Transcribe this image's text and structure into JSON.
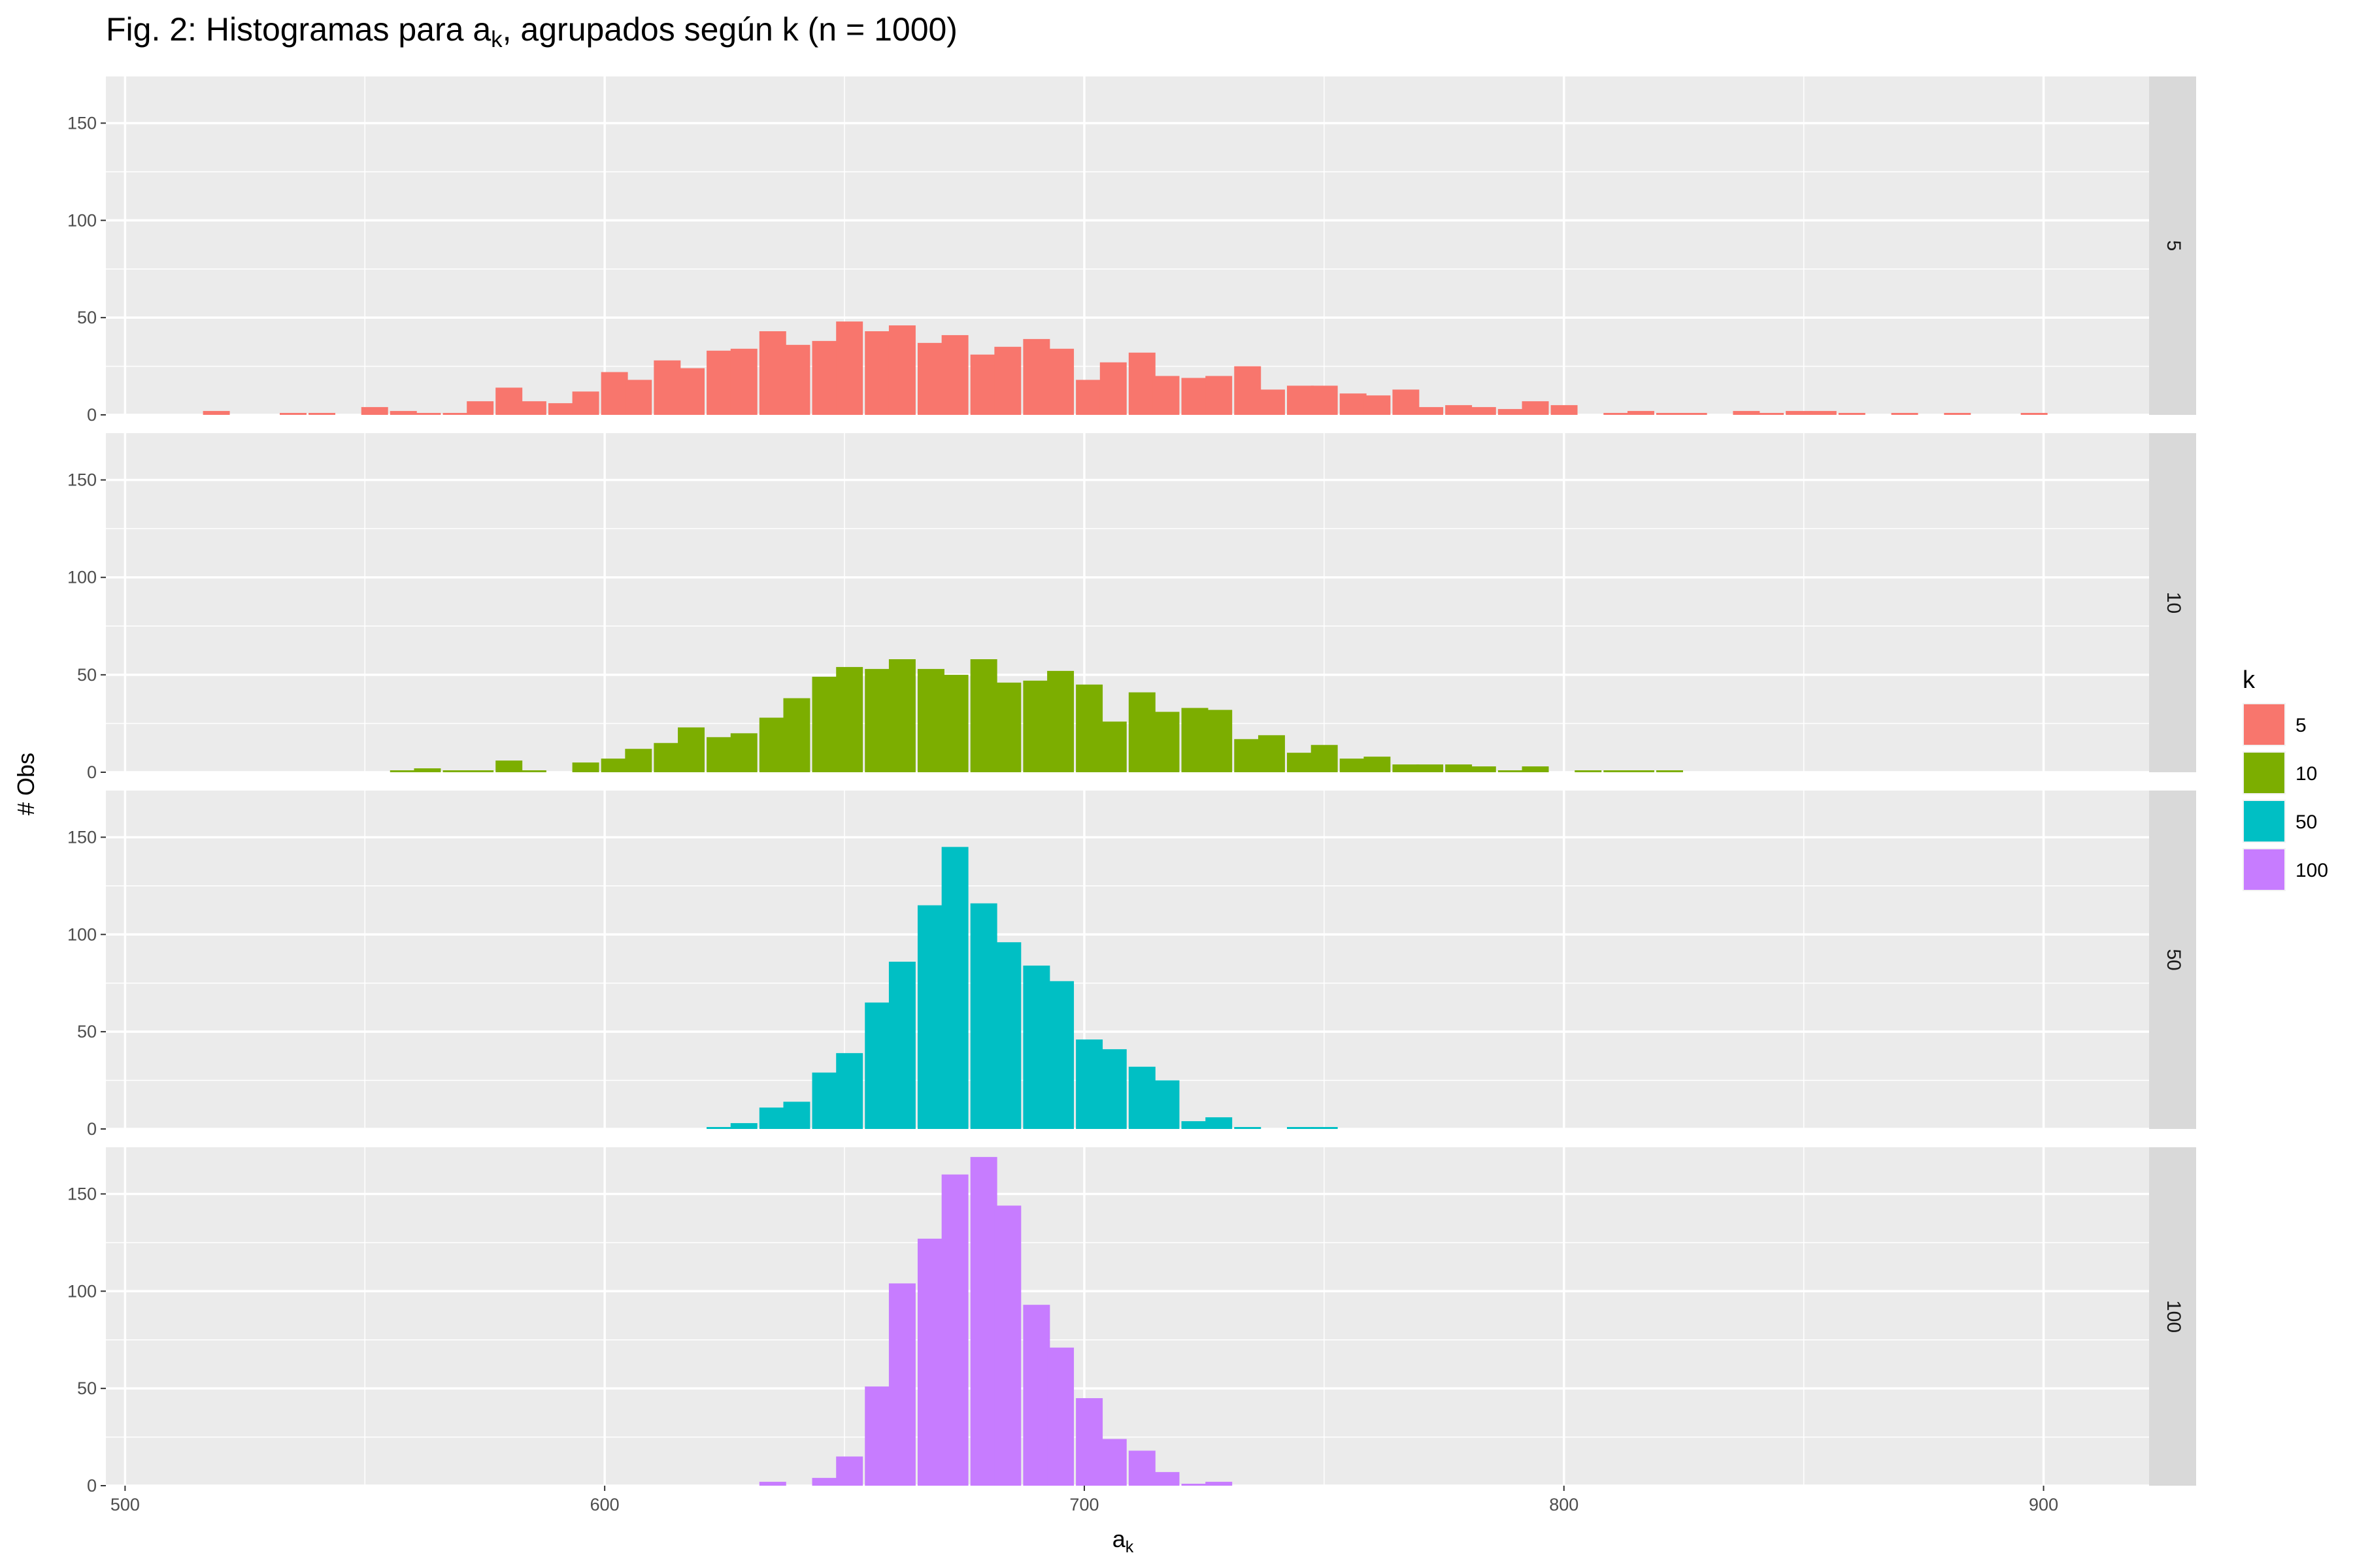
{
  "chart_data": {
    "type": "bar",
    "title_main": "Fig. 2: Histogramas para a",
    "title_sub": "k",
    "title_rest": ", agrupados según k (n = 1000)",
    "xlabel_main": "a",
    "xlabel_sub": "k",
    "ylabel": "# Obs",
    "xlim": [
      496,
      922
    ],
    "ylim": [
      0,
      174
    ],
    "x_ticks": [
      500,
      600,
      700,
      800,
      900
    ],
    "y_ticks": [
      0,
      50,
      100,
      150
    ],
    "grid": true,
    "legend": {
      "title": "k",
      "position": "right"
    },
    "facets": [
      {
        "name": "5",
        "color": "#F8766D",
        "bin_width": 5.5,
        "bins": [
          [
            519,
            2
          ],
          [
            535,
            1
          ],
          [
            541,
            1
          ],
          [
            552,
            4
          ],
          [
            558,
            2
          ],
          [
            563,
            1
          ],
          [
            569,
            1
          ],
          [
            574,
            7
          ],
          [
            580,
            14
          ],
          [
            585,
            7
          ],
          [
            591,
            6
          ],
          [
            596,
            12
          ],
          [
            602,
            22
          ],
          [
            607,
            18
          ],
          [
            613,
            28
          ],
          [
            618,
            24
          ],
          [
            624,
            33
          ],
          [
            629,
            34
          ],
          [
            635,
            43
          ],
          [
            640,
            36
          ],
          [
            646,
            38
          ],
          [
            651,
            48
          ],
          [
            657,
            43
          ],
          [
            662,
            46
          ],
          [
            668,
            37
          ],
          [
            673,
            41
          ],
          [
            679,
            31
          ],
          [
            684,
            35
          ],
          [
            690,
            39
          ],
          [
            695,
            34
          ],
          [
            701,
            18
          ],
          [
            706,
            27
          ],
          [
            712,
            32
          ],
          [
            717,
            20
          ],
          [
            723,
            19
          ],
          [
            728,
            20
          ],
          [
            734,
            25
          ],
          [
            739,
            13
          ],
          [
            745,
            15
          ],
          [
            750,
            15
          ],
          [
            756,
            11
          ],
          [
            761,
            10
          ],
          [
            767,
            13
          ],
          [
            772,
            4
          ],
          [
            778,
            5
          ],
          [
            783,
            4
          ],
          [
            789,
            3
          ],
          [
            794,
            7
          ],
          [
            800,
            5
          ],
          [
            811,
            1
          ],
          [
            816,
            2
          ],
          [
            822,
            1
          ],
          [
            827,
            1
          ],
          [
            838,
            2
          ],
          [
            843,
            1
          ],
          [
            849,
            2
          ],
          [
            854,
            2
          ],
          [
            860,
            1
          ],
          [
            871,
            1
          ],
          [
            882,
            1
          ],
          [
            898,
            1
          ]
        ]
      },
      {
        "name": "10",
        "color": "#7CAE00",
        "bin_width": 5.5,
        "bins": [
          [
            558,
            1
          ],
          [
            563,
            2
          ],
          [
            569,
            1
          ],
          [
            574,
            1
          ],
          [
            580,
            6
          ],
          [
            585,
            1
          ],
          [
            596,
            5
          ],
          [
            602,
            7
          ],
          [
            607,
            12
          ],
          [
            613,
            15
          ],
          [
            618,
            23
          ],
          [
            624,
            18
          ],
          [
            629,
            20
          ],
          [
            635,
            28
          ],
          [
            640,
            38
          ],
          [
            646,
            49
          ],
          [
            651,
            54
          ],
          [
            657,
            53
          ],
          [
            662,
            58
          ],
          [
            668,
            53
          ],
          [
            673,
            50
          ],
          [
            679,
            58
          ],
          [
            684,
            46
          ],
          [
            690,
            47
          ],
          [
            695,
            52
          ],
          [
            701,
            45
          ],
          [
            706,
            26
          ],
          [
            712,
            41
          ],
          [
            717,
            31
          ],
          [
            723,
            33
          ],
          [
            728,
            32
          ],
          [
            734,
            17
          ],
          [
            739,
            19
          ],
          [
            745,
            10
          ],
          [
            750,
            14
          ],
          [
            756,
            7
          ],
          [
            761,
            8
          ],
          [
            767,
            4
          ],
          [
            772,
            4
          ],
          [
            778,
            4
          ],
          [
            783,
            3
          ],
          [
            789,
            1
          ],
          [
            794,
            3
          ],
          [
            805,
            1
          ],
          [
            811,
            1
          ],
          [
            816,
            1
          ],
          [
            822,
            1
          ]
        ]
      },
      {
        "name": "50",
        "color": "#00BFC4",
        "bin_width": 5.5,
        "bins": [
          [
            624,
            1
          ],
          [
            629,
            3
          ],
          [
            635,
            11
          ],
          [
            640,
            14
          ],
          [
            646,
            29
          ],
          [
            651,
            39
          ],
          [
            657,
            65
          ],
          [
            662,
            86
          ],
          [
            668,
            115
          ],
          [
            673,
            145
          ],
          [
            679,
            116
          ],
          [
            684,
            96
          ],
          [
            690,
            84
          ],
          [
            695,
            76
          ],
          [
            701,
            46
          ],
          [
            706,
            41
          ],
          [
            712,
            32
          ],
          [
            717,
            25
          ],
          [
            723,
            4
          ],
          [
            728,
            6
          ],
          [
            734,
            1
          ],
          [
            745,
            1
          ],
          [
            750,
            1
          ]
        ]
      },
      {
        "name": "100",
        "color": "#C77CFF",
        "bin_width": 5.5,
        "bins": [
          [
            635,
            2
          ],
          [
            646,
            4
          ],
          [
            651,
            15
          ],
          [
            657,
            51
          ],
          [
            662,
            104
          ],
          [
            668,
            127
          ],
          [
            673,
            160
          ],
          [
            679,
            169
          ],
          [
            684,
            144
          ],
          [
            690,
            93
          ],
          [
            695,
            71
          ],
          [
            701,
            45
          ],
          [
            706,
            24
          ],
          [
            712,
            18
          ],
          [
            717,
            7
          ],
          [
            723,
            1
          ],
          [
            728,
            2
          ]
        ]
      }
    ]
  }
}
